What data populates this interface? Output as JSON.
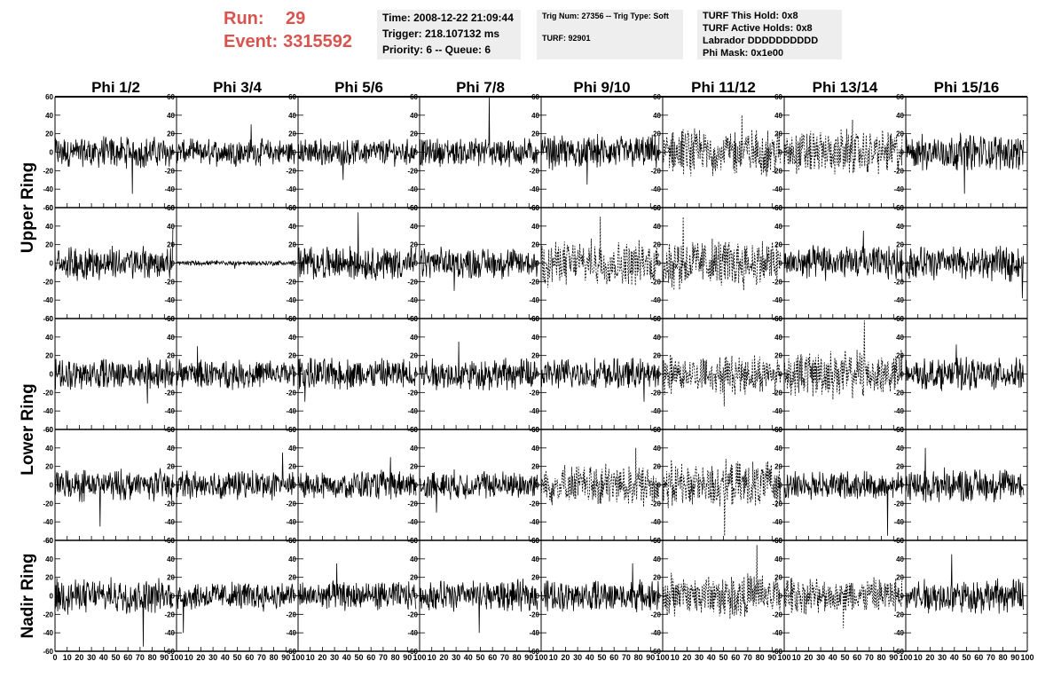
{
  "header": {
    "run_label": "Run:",
    "run_value": "29",
    "event_label": "Event:",
    "event_value": "3315592",
    "time_line": "Time: 2008-12-22 21:09:44",
    "trigger_line": "Trigger: 218.107132 ms",
    "priority_line": "Priority: 6 -- Queue: 6",
    "trig_line": "Trig Num: 27356 -- Trig Type: Soft",
    "turf_line": "TURF: 92901",
    "turf_hold_line": "TURF This Hold: 0x8",
    "turf_active_line": "TURF Active Holds: 0x8",
    "labrador_line": "Labrador DDDDDDDDDD",
    "phi_mask_line": "Phi Mask: 0x1e00"
  },
  "chart_data": {
    "type": "line",
    "columns": [
      "Phi 1/2",
      "Phi 3/4",
      "Phi 5/6",
      "Phi 7/8",
      "Phi 9/10",
      "Phi 11/12",
      "Phi 13/14",
      "Phi 15/16"
    ],
    "ring_labels": [
      "Upper Ring",
      "Lower Ring",
      "Nadir Ring"
    ],
    "rows": 5,
    "ylim": [
      -60,
      60
    ],
    "yticks": [
      -60,
      -40,
      -20,
      0,
      20,
      40,
      60
    ],
    "xlim": [
      0,
      100
    ],
    "xticks": [
      0,
      10,
      20,
      30,
      40,
      50,
      60,
      70,
      80,
      90,
      100
    ],
    "samples": 260,
    "panels": [
      [
        {
          "amp": 12,
          "peak": 45
        },
        {
          "amp": 10,
          "peak": 30
        },
        {
          "amp": 10,
          "peak": 30
        },
        {
          "amp": 11,
          "peak": 60
        },
        {
          "amp": 13,
          "peak": 35
        },
        {
          "amp": 18,
          "peak": 40,
          "dashed": true
        },
        {
          "amp": 17,
          "peak": 35,
          "dashed": true
        },
        {
          "amp": 14,
          "peak": 45
        }
      ],
      [
        {
          "amp": 13,
          "peak": 38
        },
        {
          "amp": 2,
          "peak": 6
        },
        {
          "amp": 13,
          "peak": 55
        },
        {
          "amp": 12,
          "peak": 30
        },
        {
          "amp": 17,
          "peak": 50,
          "dashed": true
        },
        {
          "amp": 19,
          "peak": 50,
          "dashed": true
        },
        {
          "amp": 13,
          "peak": 35
        },
        {
          "amp": 13,
          "peak": 38
        }
      ],
      [
        {
          "amp": 12,
          "peak": 32
        },
        {
          "amp": 11,
          "peak": 30
        },
        {
          "amp": 12,
          "peak": 30
        },
        {
          "amp": 12,
          "peak": 35
        },
        {
          "amp": 12,
          "peak": 30
        },
        {
          "amp": 15,
          "peak": 35,
          "dashed": true
        },
        {
          "amp": 18,
          "peak": 58,
          "dashed": true
        },
        {
          "amp": 12,
          "peak": 32
        }
      ],
      [
        {
          "amp": 12,
          "peak": 45
        },
        {
          "amp": 11,
          "peak": 35
        },
        {
          "amp": 11,
          "peak": 30
        },
        {
          "amp": 11,
          "peak": 30
        },
        {
          "amp": 16,
          "peak": 40,
          "dashed": true
        },
        {
          "amp": 18,
          "peak": 55,
          "dashed": true
        },
        {
          "amp": 11,
          "peak": 55
        },
        {
          "amp": 13,
          "peak": 40
        }
      ],
      [
        {
          "amp": 13,
          "peak": 55
        },
        {
          "amp": 11,
          "peak": 40
        },
        {
          "amp": 11,
          "peak": 35
        },
        {
          "amp": 12,
          "peak": 40
        },
        {
          "amp": 12,
          "peak": 35
        },
        {
          "amp": 17,
          "peak": 55,
          "dashed": true
        },
        {
          "amp": 14,
          "peak": 35,
          "dashed": true
        },
        {
          "amp": 13,
          "peak": 45
        }
      ]
    ]
  }
}
